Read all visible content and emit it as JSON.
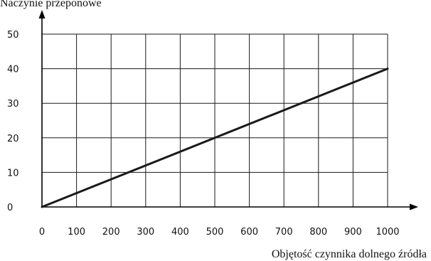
{
  "chart_data": {
    "type": "line",
    "title": "",
    "ylabel": "Naczynie przeponowe",
    "xlabel": "Objętość czynnika dolnego źródła",
    "xlim": [
      0,
      1000
    ],
    "ylim": [
      0,
      50
    ],
    "x_ticks": [
      0,
      100,
      200,
      300,
      400,
      500,
      600,
      700,
      800,
      900,
      1000
    ],
    "y_ticks": [
      0,
      10,
      20,
      30,
      40,
      50
    ],
    "grid": true,
    "legend": "none",
    "series": [
      {
        "x": [
          0,
          1000
        ],
        "y": [
          0,
          40
        ],
        "color": "#1a1a1a"
      }
    ]
  }
}
